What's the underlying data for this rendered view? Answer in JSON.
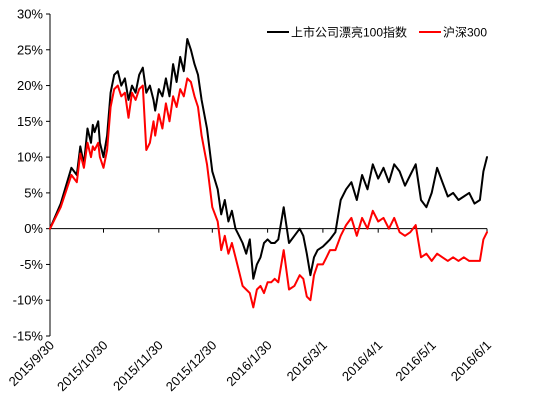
{
  "chart_data": {
    "type": "line",
    "title": "",
    "xlabel": "",
    "ylabel": "",
    "ylim": [
      -15,
      30
    ],
    "yticks": [
      30,
      25,
      20,
      15,
      10,
      5,
      0,
      -5,
      -10,
      -15
    ],
    "ytick_labels": [
      "30%",
      "25%",
      "20%",
      "15%",
      "10%",
      "5%",
      "0%",
      "-5%",
      "-10%",
      "-15%"
    ],
    "x_range": [
      "2015-09-30",
      "2016-06-01"
    ],
    "x_tick_labels": [
      "2015/9/30",
      "2015/10/30",
      "2015/11/30",
      "2015/12/30",
      "2016/1/30",
      "2016/3/1",
      "2016/4/1",
      "2016/5/1",
      "2016/6/1"
    ],
    "x_tick_dates": [
      "2015-09-30",
      "2015-10-30",
      "2015-11-30",
      "2015-12-30",
      "2016-01-30",
      "2016-03-01",
      "2016-04-01",
      "2016-05-01",
      "2016-06-01"
    ],
    "grid": false,
    "legend_position": "top-right",
    "series": [
      {
        "name": "上市公司漂亮100指数",
        "color": "#000000",
        "x": [
          "2015-09-30",
          "2015-10-06",
          "2015-10-12",
          "2015-10-15",
          "2015-10-17",
          "2015-10-19",
          "2015-10-21",
          "2015-10-23",
          "2015-10-24",
          "2015-10-25",
          "2015-10-27",
          "2015-10-28",
          "2015-10-30",
          "2015-11-01",
          "2015-11-03",
          "2015-11-05",
          "2015-11-07",
          "2015-11-09",
          "2015-11-11",
          "2015-11-13",
          "2015-11-15",
          "2015-11-17",
          "2015-11-19",
          "2015-11-21",
          "2015-11-23",
          "2015-11-25",
          "2015-11-27",
          "2015-11-28",
          "2015-11-30",
          "2015-12-02",
          "2015-12-04",
          "2015-12-06",
          "2015-12-08",
          "2015-12-10",
          "2015-12-12",
          "2015-12-14",
          "2015-12-16",
          "2015-12-18",
          "2015-12-20",
          "2015-12-22",
          "2015-12-24",
          "2015-12-27",
          "2015-12-30",
          "2016-01-02",
          "2016-01-04",
          "2016-01-06",
          "2016-01-08",
          "2016-01-10",
          "2016-01-12",
          "2016-01-14",
          "2016-01-16",
          "2016-01-18",
          "2016-01-20",
          "2016-01-22",
          "2016-01-24",
          "2016-01-26",
          "2016-01-28",
          "2016-01-30",
          "2016-02-01",
          "2016-02-03",
          "2016-02-05",
          "2016-02-08",
          "2016-02-11",
          "2016-02-14",
          "2016-02-17",
          "2016-02-19",
          "2016-02-21",
          "2016-02-23",
          "2016-02-25",
          "2016-02-27",
          "2016-03-01",
          "2016-03-03",
          "2016-03-05",
          "2016-03-08",
          "2016-03-11",
          "2016-03-14",
          "2016-03-17",
          "2016-03-20",
          "2016-03-23",
          "2016-03-26",
          "2016-03-29",
          "2016-04-01",
          "2016-04-04",
          "2016-04-07",
          "2016-04-10",
          "2016-04-13",
          "2016-04-16",
          "2016-04-19",
          "2016-04-22",
          "2016-04-25",
          "2016-04-28",
          "2016-05-01",
          "2016-05-04",
          "2016-05-07",
          "2016-05-10",
          "2016-05-13",
          "2016-05-16",
          "2016-05-19",
          "2016-05-22",
          "2016-05-25",
          "2016-05-28",
          "2016-05-30",
          "2016-06-01"
        ],
        "values": [
          0.0,
          3.5,
          8.5,
          7.5,
          11.5,
          9.0,
          14.0,
          12.0,
          14.5,
          13.5,
          15.0,
          12.0,
          10.0,
          13.0,
          19.0,
          21.5,
          22.0,
          20.0,
          21.0,
          18.0,
          20.0,
          19.0,
          21.5,
          22.5,
          19.0,
          20.0,
          18.0,
          16.5,
          19.5,
          18.5,
          21.0,
          18.5,
          23.0,
          20.5,
          24.0,
          22.0,
          26.5,
          25.0,
          23.0,
          21.5,
          18.0,
          14.0,
          8.0,
          5.5,
          2.0,
          4.0,
          1.0,
          2.5,
          0.0,
          -1.0,
          -2.0,
          -3.5,
          -1.5,
          -7.0,
          -5.0,
          -4.0,
          -2.0,
          -1.5,
          -2.0,
          -2.0,
          -1.5,
          3.0,
          -2.0,
          -1.0,
          0.0,
          -1.0,
          -3.5,
          -6.5,
          -4.0,
          -3.0,
          -2.5,
          -2.0,
          -1.5,
          -0.5,
          4.0,
          5.5,
          6.5,
          4.0,
          7.5,
          5.5,
          9.0,
          7.0,
          8.5,
          6.5,
          9.0,
          8.0,
          6.0,
          7.5,
          9.0,
          4.0,
          3.0,
          5.0,
          8.5,
          6.5,
          4.5,
          5.0,
          4.0,
          4.5,
          5.0,
          3.5,
          4.0,
          8.0,
          10.0
        ]
      },
      {
        "name": "沪深300",
        "color": "#ff0000",
        "x": [
          "2015-09-30",
          "2015-10-06",
          "2015-10-12",
          "2015-10-15",
          "2015-10-17",
          "2015-10-19",
          "2015-10-21",
          "2015-10-23",
          "2015-10-24",
          "2015-10-25",
          "2015-10-27",
          "2015-10-28",
          "2015-10-30",
          "2015-11-01",
          "2015-11-03",
          "2015-11-05",
          "2015-11-07",
          "2015-11-09",
          "2015-11-11",
          "2015-11-13",
          "2015-11-15",
          "2015-11-17",
          "2015-11-19",
          "2015-11-21",
          "2015-11-23",
          "2015-11-25",
          "2015-11-27",
          "2015-11-28",
          "2015-11-30",
          "2015-12-02",
          "2015-12-04",
          "2015-12-06",
          "2015-12-08",
          "2015-12-10",
          "2015-12-12",
          "2015-12-14",
          "2015-12-16",
          "2015-12-18",
          "2015-12-20",
          "2015-12-22",
          "2015-12-24",
          "2015-12-27",
          "2015-12-30",
          "2016-01-02",
          "2016-01-04",
          "2016-01-06",
          "2016-01-08",
          "2016-01-10",
          "2016-01-12",
          "2016-01-14",
          "2016-01-16",
          "2016-01-18",
          "2016-01-20",
          "2016-01-22",
          "2016-01-24",
          "2016-01-26",
          "2016-01-28",
          "2016-01-30",
          "2016-02-01",
          "2016-02-03",
          "2016-02-05",
          "2016-02-08",
          "2016-02-11",
          "2016-02-14",
          "2016-02-17",
          "2016-02-19",
          "2016-02-21",
          "2016-02-23",
          "2016-02-25",
          "2016-02-27",
          "2016-03-01",
          "2016-03-03",
          "2016-03-05",
          "2016-03-08",
          "2016-03-11",
          "2016-03-14",
          "2016-03-17",
          "2016-03-20",
          "2016-03-23",
          "2016-03-26",
          "2016-03-29",
          "2016-04-01",
          "2016-04-04",
          "2016-04-07",
          "2016-04-10",
          "2016-04-13",
          "2016-04-16",
          "2016-04-19",
          "2016-04-22",
          "2016-04-25",
          "2016-04-28",
          "2016-05-01",
          "2016-05-04",
          "2016-05-07",
          "2016-05-10",
          "2016-05-13",
          "2016-05-16",
          "2016-05-19",
          "2016-05-22",
          "2016-05-25",
          "2016-05-28",
          "2016-05-30",
          "2016-06-01"
        ],
        "values": [
          0.0,
          3.0,
          7.5,
          6.5,
          10.5,
          8.5,
          12.0,
          10.0,
          11.5,
          11.0,
          12.0,
          10.0,
          8.5,
          11.0,
          17.0,
          19.5,
          20.0,
          18.5,
          19.0,
          15.5,
          19.0,
          18.0,
          19.5,
          20.0,
          11.0,
          12.0,
          15.0,
          13.0,
          16.0,
          14.0,
          17.5,
          15.0,
          18.5,
          17.0,
          19.5,
          18.5,
          21.0,
          20.5,
          18.5,
          17.0,
          13.0,
          9.0,
          3.0,
          1.0,
          -3.0,
          -1.0,
          -3.5,
          -2.0,
          -4.0,
          -6.0,
          -8.0,
          -8.5,
          -9.0,
          -11.0,
          -8.5,
          -8.0,
          -9.0,
          -7.5,
          -7.5,
          -7.0,
          -7.5,
          -3.0,
          -8.5,
          -8.0,
          -6.5,
          -7.0,
          -9.5,
          -10.0,
          -6.5,
          -5.0,
          -5.0,
          -4.0,
          -3.0,
          -3.0,
          -1.0,
          0.5,
          1.5,
          -1.0,
          1.5,
          0.0,
          2.5,
          1.0,
          1.5,
          0.0,
          1.5,
          -0.5,
          -1.0,
          -0.5,
          0.5,
          -4.0,
          -3.5,
          -4.5,
          -3.5,
          -4.0,
          -4.5,
          -4.0,
          -4.5,
          -4.0,
          -4.5,
          -4.5,
          -4.5,
          -1.5,
          -0.5
        ]
      }
    ]
  }
}
